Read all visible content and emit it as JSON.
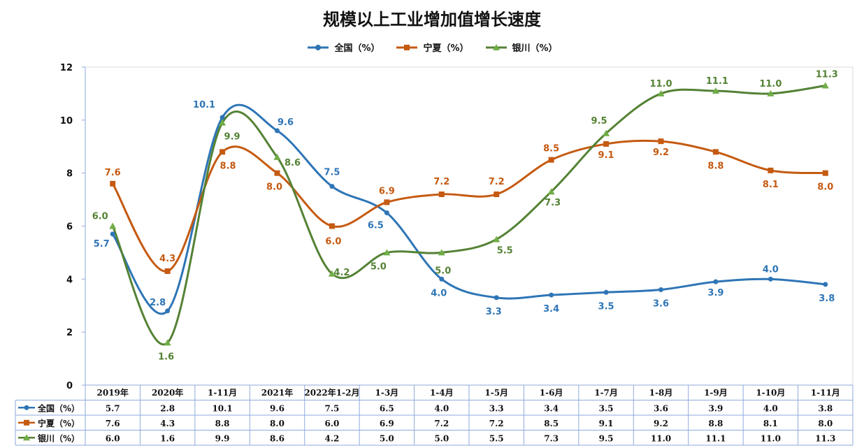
{
  "chart_data": {
    "type": "line",
    "title": "规模以上工业增加值增长速度",
    "categories": [
      "2019年",
      "2020年",
      "1-11月",
      "2021年",
      "2022年1-2月",
      "1-3月",
      "1-4月",
      "1-5月",
      "1-6月",
      "1-7月",
      "1-8月",
      "1-9月",
      "1-10月",
      "1-11月"
    ],
    "ylim": [
      0,
      12
    ],
    "yticks": [
      0,
      2,
      4,
      6,
      8,
      10,
      12
    ],
    "grid": false,
    "legend_position": "top",
    "series": [
      {
        "name": "全国（%）",
        "color": "#2E75B6",
        "marker": "circle",
        "values": [
          5.7,
          2.8,
          10.1,
          9.6,
          7.5,
          6.5,
          4.0,
          3.3,
          3.4,
          3.5,
          3.6,
          3.9,
          4.0,
          3.8
        ],
        "labels": [
          "5.7",
          "2.8",
          "10.1",
          "9.6",
          "7.5",
          "6.5",
          "4.0",
          "3.3",
          "3.4",
          "3.5",
          "3.6",
          "3.9",
          "4.0",
          "3.8"
        ]
      },
      {
        "name": "宁夏（%）",
        "color": "#C55A11",
        "marker": "square",
        "values": [
          7.6,
          4.3,
          8.8,
          8.0,
          6.0,
          6.9,
          7.2,
          7.2,
          8.5,
          9.1,
          9.2,
          8.8,
          8.1,
          8.0
        ],
        "labels": [
          "7.6",
          "4.3",
          "8.8",
          "8.0",
          "6.0",
          "6.9",
          "7.2",
          "7.2",
          "8.5",
          "9.1",
          "9.2",
          "8.8",
          "8.1",
          "8.0"
        ]
      },
      {
        "name": "银川（%）",
        "color": "#548235",
        "marker": "triangle",
        "marker_color": "#70AD47",
        "values": [
          6.0,
          1.6,
          9.9,
          8.6,
          4.2,
          5.0,
          5.0,
          5.5,
          7.3,
          9.5,
          11.0,
          11.1,
          11.0,
          11.3
        ],
        "labels": [
          "6.0",
          "1.6",
          "9.9",
          "8.6",
          "4.2",
          "5.0",
          "5.0",
          "5.5",
          "7.3",
          "9.5",
          "11.0",
          "11.1",
          "11.0",
          "11.3"
        ]
      }
    ],
    "table": [
      [
        "5.7",
        "2.8",
        "10.1",
        "9.6",
        "7.5",
        "6.5",
        "4.0",
        "3.3",
        "3.4",
        "3.5",
        "3.6",
        "3.9",
        "4.0",
        "3.8"
      ],
      [
        "7.6",
        "4.3",
        "8.8",
        "8.0",
        "6.0",
        "6.9",
        "7.2",
        "7.2",
        "8.5",
        "9.1",
        "9.2",
        "8.8",
        "8.1",
        "8.0"
      ],
      [
        "6.0",
        "1.6",
        "9.9",
        "8.6",
        "4.2",
        "5.0",
        "5.0",
        "5.5",
        "7.3",
        "9.5",
        "11.0",
        "11.1",
        "11.0",
        "11.3"
      ]
    ]
  }
}
